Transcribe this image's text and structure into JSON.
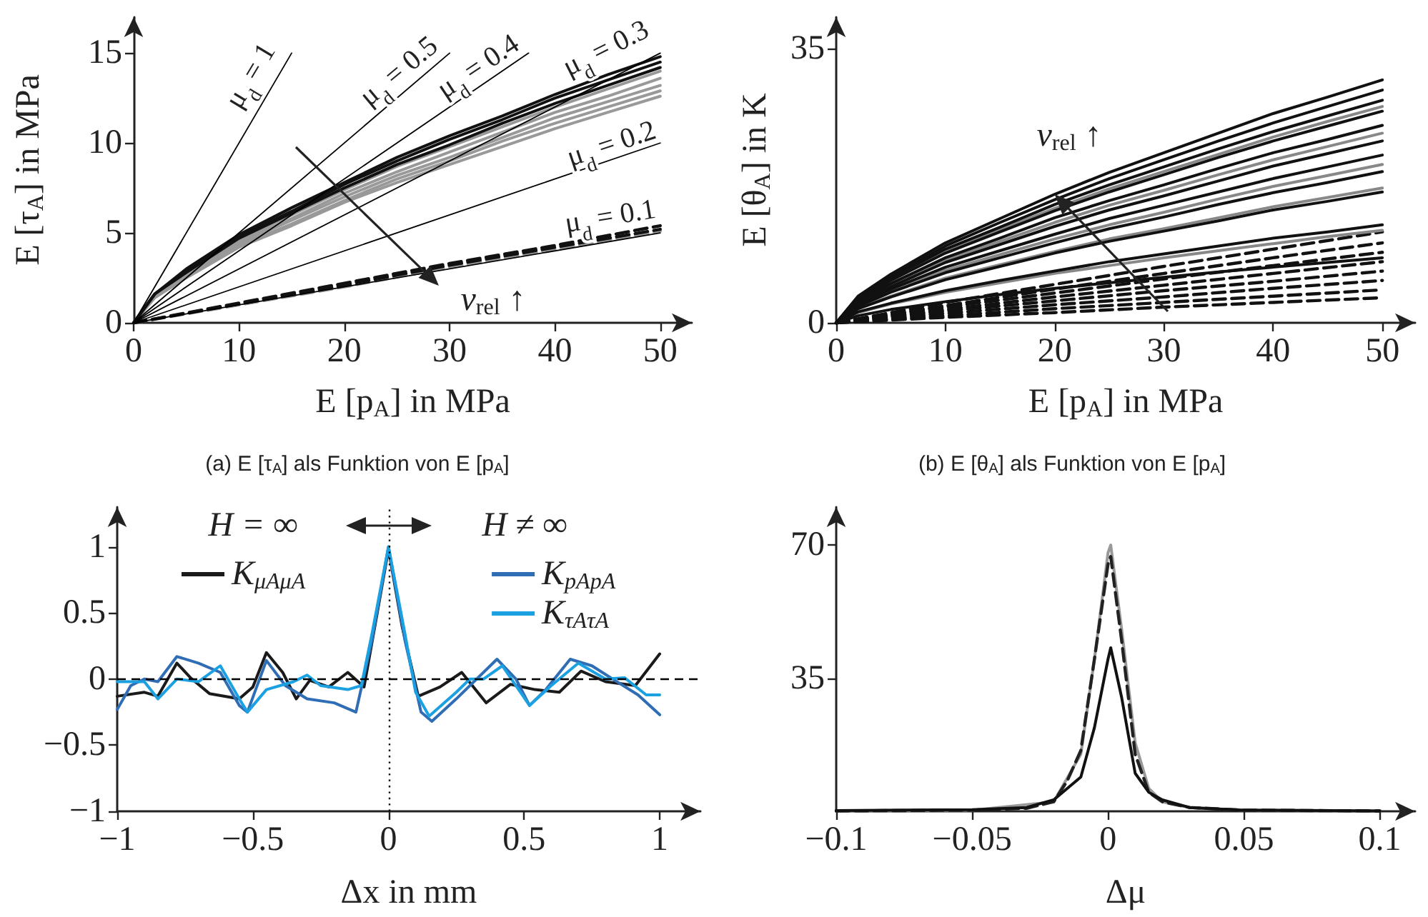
{
  "chart_data": [
    {
      "type": "line",
      "xlabel": "E [p$_{A}$] in MPa",
      "ylabel": "E [τ$_{A}$] in MPa",
      "xlim": [
        0,
        53
      ],
      "ylim": [
        0,
        17
      ],
      "xticks": [
        0,
        10,
        20,
        30,
        40,
        50
      ],
      "yticks": [
        0,
        5,
        10,
        15
      ],
      "annotations": [
        "v$_{rel}$ ↑",
        "(a) E [τ$_{A}$] als Funktion von E [p$_{A}$]"
      ],
      "x": [
        0,
        2,
        5,
        10,
        15,
        20,
        25,
        30,
        35,
        40,
        45,
        50
      ],
      "series": [
        {
          "color": "#999999",
          "values": [
            0,
            1.4,
            2.5,
            4.2,
            5.4,
            6.7,
            7.8,
            8.8,
            9.8,
            10.8,
            11.7,
            12.6
          ]
        },
        {
          "color": "#999999",
          "values": [
            0,
            1.4,
            2.6,
            4.3,
            5.5,
            6.8,
            8.0,
            9.0,
            10.1,
            11.1,
            12.0,
            12.9
          ]
        },
        {
          "color": "#999999",
          "values": [
            0,
            1.5,
            2.6,
            4.4,
            5.7,
            7.0,
            8.2,
            9.2,
            10.3,
            11.4,
            12.3,
            13.2
          ]
        },
        {
          "color": "#999999",
          "values": [
            0,
            1.5,
            2.7,
            4.5,
            5.8,
            7.2,
            8.4,
            9.5,
            10.6,
            11.7,
            12.6,
            13.6
          ]
        },
        {
          "color": "#999999",
          "values": [
            0,
            1.5,
            2.8,
            4.6,
            6.0,
            7.4,
            8.7,
            9.8,
            10.9,
            12.0,
            13.0,
            14.0
          ]
        },
        {
          "color": "#111111",
          "values": [
            0,
            1.6,
            2.8,
            4.7,
            6.1,
            7.5,
            8.8,
            9.9,
            11.1,
            12.2,
            13.2,
            14.2
          ]
        },
        {
          "color": "#111111",
          "values": [
            0,
            1.6,
            2.9,
            4.8,
            6.2,
            7.7,
            9.0,
            10.2,
            11.3,
            12.5,
            13.5,
            14.5
          ]
        },
        {
          "color": "#111111",
          "values": [
            0,
            1.6,
            3.0,
            4.9,
            6.4,
            7.8,
            9.2,
            10.4,
            11.5,
            12.7,
            13.8,
            14.8
          ]
        },
        {
          "color": "#999999",
          "line_style": "dashed",
          "x": [
            0,
            10,
            20,
            30,
            40,
            50
          ],
          "values": [
            0,
            1.0,
            2.0,
            3.1,
            4.1,
            5.1
          ]
        },
        {
          "color": "#111111",
          "line_style": "dashed",
          "x": [
            0,
            10,
            20,
            30,
            40,
            50
          ],
          "values": [
            0,
            1.05,
            2.1,
            3.2,
            4.2,
            5.2
          ]
        },
        {
          "color": "#111111",
          "line_style": "dashed",
          "x": [
            0,
            10,
            20,
            30,
            40,
            50
          ],
          "values": [
            0,
            1.1,
            2.2,
            3.3,
            4.3,
            5.4
          ]
        },
        {
          "name": "μ$_{d}$ = 1",
          "color": "#000000",
          "x": [
            0,
            15
          ],
          "values": [
            0,
            15
          ]
        },
        {
          "name": "μ$_{d}$ = 0.5",
          "color": "#000000",
          "x": [
            0,
            30
          ],
          "values": [
            0,
            15
          ]
        },
        {
          "name": "μ$_{d}$ = 0.4",
          "color": "#000000",
          "x": [
            0,
            37.5
          ],
          "values": [
            0,
            15
          ]
        },
        {
          "name": "μ$_{d}$ = 0.3",
          "color": "#000000",
          "x": [
            0,
            50
          ],
          "values": [
            0,
            15
          ]
        },
        {
          "name": "μ$_{d}$ = 0.2",
          "color": "#000000",
          "x": [
            0,
            50
          ],
          "values": [
            0,
            10
          ]
        },
        {
          "name": "μ$_{d}$ = 0.1",
          "color": "#000000",
          "x": [
            0,
            50
          ],
          "values": [
            0,
            5
          ]
        }
      ]
    },
    {
      "type": "line",
      "xlabel": "E [p$_{A}$] in MPa",
      "ylabel": "E [θ$_{A}$] in K",
      "xlim": [
        0,
        53
      ],
      "ylim": [
        0,
        39
      ],
      "xticks": [
        0,
        10,
        20,
        30,
        40,
        50
      ],
      "yticks": [
        0,
        35
      ],
      "annotations": [
        {
          "text": "v$_{rel}$ ↑",
          "x": 20,
          "y": 16.4
        },
        "(b) E [θ$_{A}$] als Funktion von E [p$_{A}$]"
      ],
      "x": [
        0,
        2,
        5,
        10,
        15,
        20,
        25,
        30,
        35,
        40,
        45,
        50
      ],
      "series": [
        {
          "color": "#111111",
          "line_style": "dashed",
          "x": [
            0,
            10,
            20,
            30,
            40,
            50
          ],
          "values": [
            0,
            2.6,
            4.9,
            7.2,
            9.4,
            11.6
          ]
        },
        {
          "color": "#111111",
          "line_style": "dashed",
          "x": [
            0,
            10,
            20,
            30,
            40,
            50
          ],
          "values": [
            0,
            2.2,
            4.3,
            6.3,
            8.3,
            10.2
          ]
        },
        {
          "color": "#111111",
          "line_style": "dashed",
          "x": [
            0,
            10,
            20,
            30,
            40,
            50
          ],
          "values": [
            0,
            2.0,
            3.8,
            5.6,
            7.3,
            9.0
          ]
        },
        {
          "color": "#111111",
          "line_style": "dashed",
          "x": [
            0,
            10,
            20,
            30,
            40,
            50
          ],
          "values": [
            0,
            1.7,
            3.3,
            4.8,
            6.3,
            7.8
          ]
        },
        {
          "color": "#111111",
          "line_style": "dashed",
          "x": [
            0,
            10,
            20,
            30,
            40,
            50
          ],
          "values": [
            0,
            1.5,
            2.8,
            4.1,
            5.3,
            6.6
          ]
        },
        {
          "color": "#111111",
          "line_style": "dashed",
          "x": [
            0,
            10,
            20,
            30,
            40,
            50
          ],
          "values": [
            0,
            1.2,
            2.3,
            3.3,
            4.4,
            5.4
          ]
        },
        {
          "color": "#111111",
          "line_style": "dashed",
          "x": [
            0,
            10,
            20,
            30,
            40,
            50
          ],
          "values": [
            0,
            0.9,
            1.8,
            2.6,
            3.4,
            4.2
          ]
        },
        {
          "color": "#111111",
          "line_style": "dashed",
          "x": [
            0,
            10,
            20,
            30,
            40,
            50
          ],
          "values": [
            0,
            0.7,
            1.3,
            2.0,
            2.6,
            3.2
          ]
        },
        {
          "color": "#888888",
          "values": [
            0,
            3.0,
            5.5,
            9.1,
            11.9,
            14.6,
            17.1,
            19.3,
            21.5,
            23.7,
            25.7,
            27.6
          ]
        },
        {
          "color": "#888888",
          "values": [
            0,
            2.7,
            4.8,
            8.0,
            10.4,
            12.8,
            15.0,
            16.9,
            18.9,
            20.8,
            22.5,
            24.2
          ]
        },
        {
          "color": "#888888",
          "values": [
            0,
            2.2,
            4.0,
            6.7,
            8.7,
            10.7,
            12.5,
            14.1,
            15.8,
            17.4,
            18.8,
            20.2
          ]
        },
        {
          "color": "#888888",
          "values": [
            0,
            1.9,
            3.4,
            5.7,
            7.4,
            9.1,
            10.7,
            12.0,
            13.4,
            14.8,
            16.0,
            17.2
          ]
        },
        {
          "color": "#888888",
          "values": [
            0,
            1.3,
            2.4,
            3.9,
            5.1,
            6.3,
            7.3,
            8.3,
            9.2,
            10.1,
            11.0,
            11.8
          ]
        },
        {
          "color": "#111111",
          "values": [
            0,
            3.4,
            6.2,
            10.2,
            13.3,
            16.4,
            19.2,
            21.7,
            24.2,
            26.7,
            28.8,
            31.0
          ]
        },
        {
          "color": "#111111",
          "values": [
            0,
            3.3,
            5.9,
            9.8,
            12.8,
            15.7,
            18.4,
            20.8,
            23.2,
            25.5,
            27.6,
            29.7
          ]
        },
        {
          "color": "#111111",
          "values": [
            0,
            3.1,
            5.7,
            9.4,
            12.2,
            15.1,
            17.6,
            19.9,
            22.2,
            24.4,
            26.4,
            28.4
          ]
        },
        {
          "color": "#111111",
          "values": [
            0,
            3.0,
            5.4,
            8.9,
            11.6,
            14.3,
            16.7,
            18.9,
            21.1,
            23.2,
            25.1,
            27.0
          ]
        },
        {
          "color": "#111111",
          "values": [
            0,
            2.8,
            5.0,
            8.3,
            10.8,
            13.4,
            15.6,
            17.6,
            19.7,
            21.7,
            23.4,
            25.2
          ]
        },
        {
          "color": "#111111",
          "values": [
            0,
            2.6,
            4.6,
            7.7,
            10.0,
            12.3,
            14.4,
            16.2,
            18.1,
            20.0,
            21.6,
            23.2
          ]
        },
        {
          "color": "#111111",
          "values": [
            0,
            2.4,
            4.3,
            7.1,
            9.2,
            11.3,
            13.3,
            15.0,
            16.7,
            18.4,
            19.9,
            21.4
          ]
        },
        {
          "color": "#111111",
          "values": [
            0,
            2.1,
            3.9,
            6.4,
            8.3,
            10.2,
            12.0,
            13.5,
            15.1,
            16.6,
            17.9,
            19.3
          ]
        },
        {
          "color": "#111111",
          "values": [
            0,
            1.8,
            3.3,
            5.5,
            7.2,
            8.9,
            10.4,
            11.7,
            13.0,
            14.4,
            15.5,
            16.7
          ]
        },
        {
          "color": "#111111",
          "values": [
            0,
            1.4,
            2.5,
            4.1,
            5.4,
            6.6,
            7.8,
            8.8,
            9.8,
            10.8,
            11.6,
            12.5
          ]
        },
        {
          "color": "#111111",
          "values": [
            0,
            0.9,
            1.7,
            2.7,
            3.6,
            4.4,
            5.1,
            5.8,
            6.5,
            7.1,
            7.7,
            8.3
          ]
        }
      ]
    },
    {
      "type": "line",
      "xlabel": "Δx in mm",
      "xlim": [
        -1,
        1.15
      ],
      "ylim": [
        -1,
        1.3
      ],
      "xticks": [
        {
          "value": -1,
          "label": "−1"
        },
        {
          "value": -0.5,
          "label": "−0.5"
        },
        0,
        0.5,
        1
      ],
      "yticks": [
        {
          "value": -1,
          "label": "−1"
        },
        {
          "value": -0.5,
          "label": "−0.5"
        },
        0,
        0.5,
        1
      ],
      "legend": "top",
      "annotations": [
        "H = ∞",
        "H ≠ ∞"
      ],
      "ref_lines": [
        {
          "axis": "y",
          "value": 0,
          "color": "#000000",
          "line_style": "dashed"
        },
        {
          "axis": "x",
          "value": 0,
          "color": "#000000",
          "line_style": "dotted"
        }
      ],
      "series": [
        {
          "name": "K$_{μAμA}$",
          "color": "#1a1a1a",
          "x": [
            -1,
            -0.9,
            -0.85,
            -0.78,
            -0.73,
            -0.66,
            -0.55,
            -0.5,
            -0.45,
            -0.39,
            -0.34,
            -0.29,
            -0.22,
            -0.15,
            -0.09,
            -0.05,
            0,
            0.05,
            0.11,
            0.19,
            0.27,
            0.36,
            0.45,
            0.54,
            0.63,
            0.71,
            0.8,
            0.91,
            1
          ],
          "values": [
            -0.13,
            -0.1,
            -0.13,
            0.12,
            0.01,
            -0.11,
            -0.15,
            -0.06,
            0.2,
            0.05,
            -0.15,
            -0.01,
            -0.06,
            0.05,
            -0.06,
            0.4,
            0.98,
            0.4,
            -0.13,
            -0.06,
            0.05,
            -0.18,
            -0.04,
            -0.08,
            -0.1,
            0.06,
            -0.02,
            -0.05,
            0.19
          ]
        },
        {
          "name": "K$_{pApA}$",
          "color": "#2f6db5",
          "x": [
            -1,
            -0.95,
            -0.9,
            -0.85,
            -0.78,
            -0.7,
            -0.62,
            -0.55,
            -0.52,
            -0.45,
            -0.38,
            -0.3,
            -0.2,
            -0.12,
            -0.06,
            0,
            0.06,
            0.12,
            0.16,
            0.25,
            0.4,
            0.47,
            0.52,
            0.58,
            0.67,
            0.75,
            0.85,
            0.92,
            1
          ],
          "values": [
            -0.23,
            -0.05,
            0,
            -0.02,
            0.17,
            0.12,
            0.05,
            -0.2,
            -0.25,
            0.14,
            -0.05,
            -0.15,
            -0.18,
            -0.25,
            0.3,
            1,
            0.3,
            -0.25,
            -0.32,
            -0.15,
            0.15,
            0,
            -0.2,
            -0.08,
            0.15,
            0.1,
            -0.03,
            -0.12,
            -0.27
          ]
        },
        {
          "name": "K$_{τAτA}$",
          "color": "#1ba1e2",
          "x": [
            -1,
            -0.9,
            -0.85,
            -0.78,
            -0.7,
            -0.62,
            -0.55,
            -0.52,
            -0.45,
            -0.35,
            -0.3,
            -0.25,
            -0.15,
            -0.1,
            -0.06,
            0,
            0.06,
            0.1,
            0.15,
            0.25,
            0.3,
            0.35,
            0.42,
            0.52,
            0.6,
            0.7,
            0.8,
            0.87,
            0.95,
            1
          ],
          "values": [
            -0.02,
            -0.02,
            -0.15,
            0,
            -0.02,
            0.1,
            -0.15,
            -0.25,
            -0.08,
            -0.02,
            0.03,
            -0.05,
            -0.08,
            -0.05,
            0.35,
            1,
            0.35,
            -0.1,
            -0.28,
            -0.1,
            0,
            0,
            0.1,
            -0.2,
            -0.05,
            0.12,
            0,
            0.01,
            -0.12,
            -0.12
          ]
        }
      ]
    },
    {
      "type": "line",
      "xlabel": "Δμ",
      "xlim": [
        -0.1,
        0.113
      ],
      "ylim": [
        0,
        80
      ],
      "xticks": [
        {
          "value": -0.1,
          "label": "−0.1"
        },
        {
          "value": -0.05,
          "label": "−0.05"
        },
        0,
        0.05,
        0.1
      ],
      "yticks": [
        35,
        70
      ],
      "series": [
        {
          "color": "#999999",
          "x": [
            -0.1,
            -0.05,
            -0.02,
            -0.01,
            -0.005,
            0,
            0.001,
            0.005,
            0.01,
            0.015,
            0.02,
            0.03,
            0.05,
            0.1
          ],
          "values": [
            0.1,
            0.3,
            2.5,
            15,
            40,
            68,
            70,
            48,
            18,
            6,
            2.5,
            1,
            0.3,
            0.1
          ]
        },
        {
          "color": "#222222",
          "line_style": "dashed",
          "x": [
            -0.1,
            -0.05,
            -0.03,
            -0.02,
            -0.015,
            -0.01,
            -0.005,
            0,
            0.001,
            0.005,
            0.01,
            0.015,
            0.02,
            0.03,
            0.05,
            0.1
          ],
          "values": [
            0.1,
            0.3,
            0.8,
            2.5,
            8,
            16,
            40,
            65,
            67,
            45,
            15,
            5,
            2.5,
            1,
            0.3,
            0.1
          ]
        },
        {
          "color": "#111111",
          "x": [
            -0.1,
            -0.05,
            -0.03,
            -0.02,
            -0.01,
            -0.005,
            0,
            0.001,
            0.005,
            0.01,
            0.015,
            0.02,
            0.03,
            0.05,
            0.1
          ],
          "values": [
            0.2,
            0.4,
            1,
            3,
            9,
            22,
            40,
            43,
            30,
            10,
            5,
            3,
            1,
            0.3,
            0.1
          ]
        }
      ]
    }
  ]
}
